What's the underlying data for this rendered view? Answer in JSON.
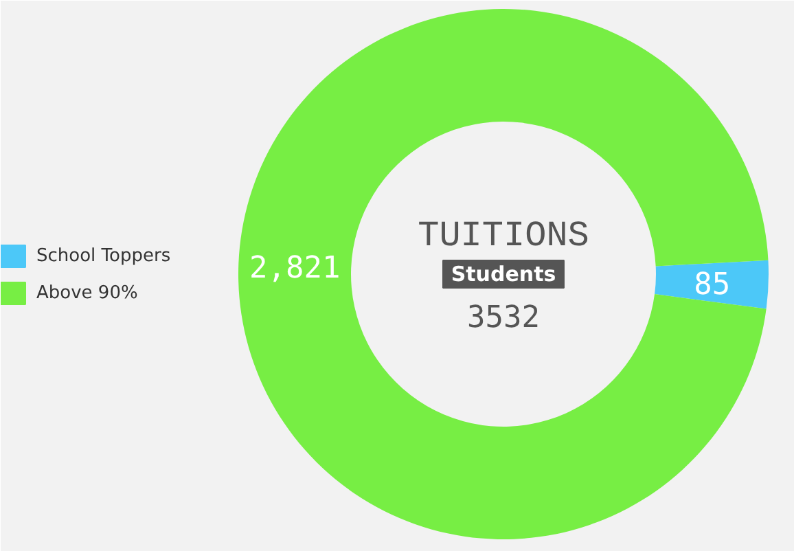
{
  "chart_data": {
    "type": "donut",
    "categories": [
      "School Toppers",
      "Above 90%"
    ],
    "values": [
      85,
      2821
    ],
    "colors": [
      "#4cc8f8",
      "#77ee44"
    ],
    "value_labels": [
      "85",
      "2,821"
    ],
    "legend": "left",
    "annotations": [
      "TUITIONS",
      "Students",
      "3532"
    ]
  }
}
